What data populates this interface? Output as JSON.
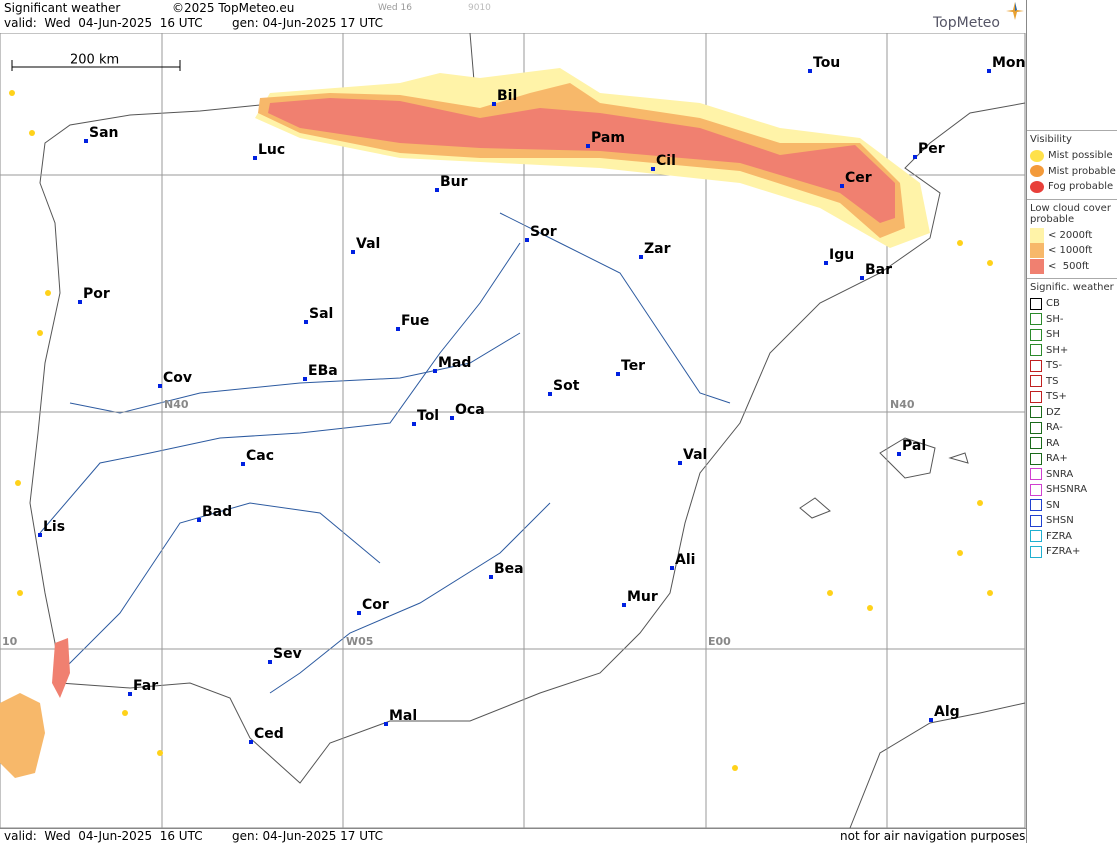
{
  "header": {
    "title": "Significant weather",
    "copyright": "©2025 TopMeteo.eu",
    "valid": "valid:  Wed  04-Jun-2025  16 UTC",
    "generated": "gen: 04-Jun-2025 17 UTC",
    "slider_label": "Wed 16",
    "slider_code": "9010",
    "brand": "TopMeteo"
  },
  "footer": {
    "valid": "valid:  Wed  04-Jun-2025  16 UTC",
    "generated": "gen: 04-Jun-2025 17 UTC",
    "disclaimer": "not for air navigation purposes"
  },
  "map": {
    "scale": "200 km",
    "grid_labels": [
      "N40",
      "N40",
      "W05",
      "E00",
      "10"
    ],
    "cities": [
      "San",
      "Luc",
      "Bur",
      "Bil",
      "Pam",
      "Cil",
      "Tou",
      "Mon",
      "Per",
      "Cer",
      "Val",
      "Sor",
      "Zar",
      "Igu",
      "Bar",
      "Por",
      "Sal",
      "Fue",
      "Mad",
      "Ter",
      "Cov",
      "EBa",
      "Sot",
      "Tol",
      "Oca",
      "Val",
      "Pal",
      "Cac",
      "Bad",
      "Lis",
      "Bea",
      "Ali",
      "Mur",
      "Cor",
      "Sev",
      "Far",
      "Ced",
      "Mal",
      "Alg"
    ]
  },
  "legend": {
    "visibility": {
      "title": "Visibility",
      "items": [
        "Mist possible",
        "Mist probable",
        "Fog probable"
      ]
    },
    "low_cloud": {
      "title": "Low cloud cover probable",
      "items": [
        "< 2000ft",
        "< 1000ft",
        "<  500ft"
      ]
    },
    "weather": {
      "title": "Signific. weather",
      "items": [
        "CB",
        "SH-",
        "SH",
        "SH+",
        "TS-",
        "TS",
        "TS+",
        "DZ",
        "RA-",
        "RA",
        "RA+",
        "SNRA",
        "SHSNRA",
        "SN",
        "SHSN",
        "FZRA",
        "FZRA+"
      ]
    }
  }
}
